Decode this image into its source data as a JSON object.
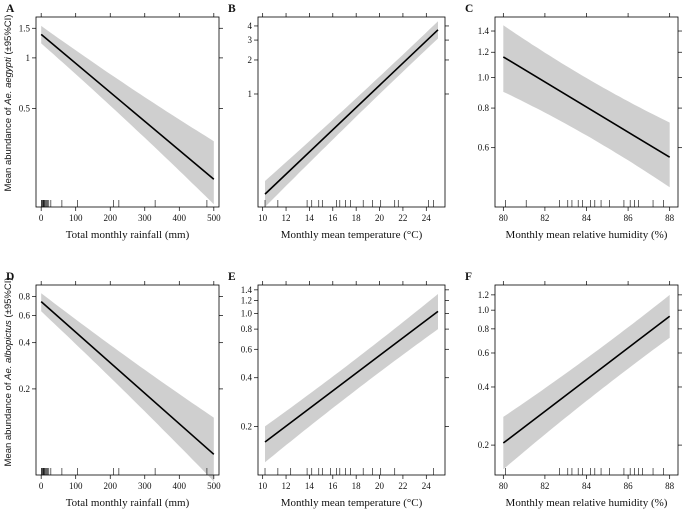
{
  "chart_data": [
    {
      "type": "line",
      "panel": "A",
      "xlabel": "Total monthly rainfall (mm)",
      "xticks": [
        0,
        100,
        200,
        300,
        400,
        500
      ],
      "xlim": [
        -15,
        515
      ],
      "yscale": "log",
      "ylim": [
        0.13,
        1.75
      ],
      "yticks": [
        0.5,
        1,
        1.5
      ],
      "ytick_labels": [
        "0.5",
        "1",
        "1.5"
      ],
      "colors": {
        "band": "#cfcfcf",
        "line": "#000000"
      },
      "series": [
        {
          "x": [
            0,
            500
          ],
          "y": [
            1.38,
            0.19
          ],
          "lower": [
            1.22,
            0.135
          ],
          "upper": [
            1.55,
            0.32
          ]
        }
      ],
      "rug": [
        1,
        2,
        4,
        6,
        8,
        10,
        12,
        15,
        18,
        22,
        28,
        60,
        105,
        210,
        225,
        330,
        480
      ]
    },
    {
      "type": "line",
      "panel": "B",
      "xlabel": "Monthly mean temperature (°C)",
      "xticks": [
        10,
        12,
        14,
        16,
        18,
        20,
        22,
        24
      ],
      "xlim": [
        9.6,
        25.6
      ],
      "yscale": "log",
      "ylim": [
        0.1,
        4.8
      ],
      "yticks": [
        1,
        2,
        3,
        4
      ],
      "ytick_labels": [
        "1",
        "2",
        "3",
        "4"
      ],
      "colors": {
        "band": "#cfcfcf",
        "line": "#000000"
      },
      "series": [
        {
          "x": [
            10.2,
            25
          ],
          "y": [
            0.13,
            3.7
          ],
          "lower": [
            0.1,
            3.1
          ],
          "upper": [
            0.17,
            4.4
          ]
        }
      ],
      "rug": [
        10.2,
        11.3,
        13.8,
        14.2,
        14.8,
        15.1,
        16.3,
        16.6,
        17.1,
        17.5,
        18.6,
        19.4,
        20.1,
        21.3,
        21.6,
        24.2,
        24.6
      ]
    },
    {
      "type": "line",
      "panel": "C",
      "xlabel": "Monthly mean relative humidity (%)",
      "xticks": [
        80,
        82,
        84,
        86,
        88
      ],
      "xlim": [
        79.6,
        88.4
      ],
      "yscale": "log",
      "ylim": [
        0.39,
        1.55
      ],
      "yticks": [
        0.6,
        0.8,
        1.0,
        1.2,
        1.4
      ],
      "ytick_labels": [
        "0.6",
        "0.8",
        "1.0",
        "1.2",
        "1.4"
      ],
      "colors": {
        "band": "#cfcfcf",
        "line": "#000000"
      },
      "series": [
        {
          "x": [
            80,
            88
          ],
          "y": [
            1.16,
            0.56
          ],
          "lower": [
            0.9,
            0.45
          ],
          "upper": [
            1.46,
            0.72
          ]
        }
      ],
      "rug": [
        80.1,
        81.1,
        82.7,
        83.1,
        83.3,
        83.6,
        83.8,
        84.2,
        84.4,
        84.7,
        85.1,
        85.8,
        86.1,
        86.3,
        86.5,
        87.2,
        87.7
      ]
    },
    {
      "type": "line",
      "panel": "D",
      "xlabel": "Total monthly rainfall (mm)",
      "xticks": [
        0,
        100,
        200,
        300,
        400,
        500
      ],
      "xlim": [
        -15,
        515
      ],
      "yscale": "log",
      "ylim": [
        0.055,
        0.95
      ],
      "yticks": [
        0.2,
        0.4,
        0.6,
        0.8
      ],
      "ytick_labels": [
        "0.2",
        "0.4",
        "0.6",
        "0.8"
      ],
      "colors": {
        "band": "#cfcfcf",
        "line": "#000000"
      },
      "series": [
        {
          "x": [
            0,
            500
          ],
          "y": [
            0.74,
            0.075
          ],
          "lower": [
            0.64,
            0.05
          ],
          "upper": [
            0.84,
            0.13
          ]
        }
      ],
      "rug": [
        1,
        2,
        4,
        6,
        8,
        10,
        12,
        15,
        18,
        22,
        28,
        60,
        105,
        210,
        225,
        330,
        480
      ]
    },
    {
      "type": "line",
      "panel": "E",
      "xlabel": "Monthly mean temperature (°C)",
      "xticks": [
        10,
        12,
        14,
        16,
        18,
        20,
        22,
        24
      ],
      "xlim": [
        9.6,
        25.6
      ],
      "yscale": "log",
      "ylim": [
        0.1,
        1.5
      ],
      "yticks": [
        0.2,
        0.4,
        0.6,
        0.8,
        1.0,
        1.2,
        1.4
      ],
      "ytick_labels": [
        "0.2",
        "0.4",
        "0.6",
        "0.8",
        "1.0",
        "1.2",
        "1.4"
      ],
      "colors": {
        "band": "#cfcfcf",
        "line": "#000000"
      },
      "series": [
        {
          "x": [
            10.2,
            25
          ],
          "y": [
            0.16,
            1.03
          ],
          "lower": [
            0.12,
            0.8
          ],
          "upper": [
            0.2,
            1.32
          ]
        }
      ],
      "rug": [
        10.2,
        11.3,
        12.4,
        13.8,
        14.2,
        14.8,
        15.1,
        15.8,
        16.3,
        16.6,
        17.1,
        17.5,
        18.6,
        19.4,
        20.1,
        21.3,
        24.6
      ]
    },
    {
      "type": "line",
      "panel": "F",
      "xlabel": "Monthly mean relative humidity (%)",
      "xticks": [
        80,
        82,
        84,
        86,
        88
      ],
      "xlim": [
        79.6,
        88.4
      ],
      "yscale": "log",
      "ylim": [
        0.14,
        1.35
      ],
      "yticks": [
        0.2,
        0.4,
        0.6,
        0.8,
        1.0,
        1.2
      ],
      "ytick_labels": [
        "0.2",
        "0.4",
        "0.6",
        "0.8",
        "1.0",
        "1.2"
      ],
      "colors": {
        "band": "#cfcfcf",
        "line": "#000000"
      },
      "series": [
        {
          "x": [
            80,
            88
          ],
          "y": [
            0.205,
            0.93
          ],
          "lower": [
            0.15,
            0.72
          ],
          "upper": [
            0.28,
            1.2
          ]
        }
      ],
      "rug": [
        80.1,
        82.7,
        83.1,
        83.3,
        83.6,
        83.8,
        84.2,
        84.4,
        84.7,
        85.1,
        85.8,
        86.1,
        86.3,
        86.5,
        86.7,
        87.2,
        87.7
      ]
    }
  ],
  "y_labels": {
    "top": {
      "prefix": "Mean abundance  of ",
      "species": "Ae. aegypti",
      "suffix": " (±95%CI)"
    },
    "bottom": {
      "prefix": "Mean abundance of ",
      "species": "Ae. albopictus",
      "suffix": " (±95%CI)"
    }
  }
}
